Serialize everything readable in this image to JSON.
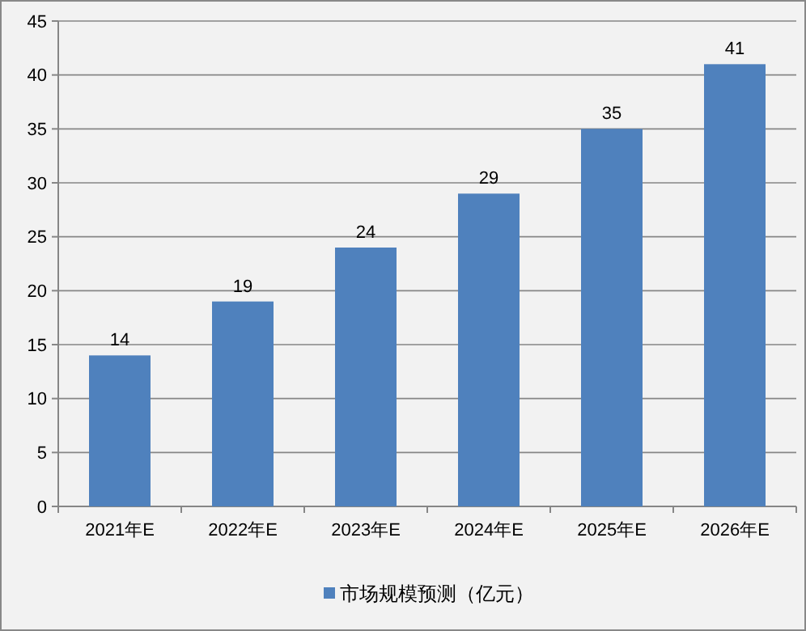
{
  "chart_data": {
    "type": "bar",
    "categories": [
      "2021年E",
      "2022年E",
      "2023年E",
      "2024年E",
      "2025年E",
      "2026年E"
    ],
    "series": [
      {
        "name": "市场规模预测（亿元）",
        "color": "#4f81bd",
        "values": [
          14,
          19,
          24,
          29,
          35,
          41
        ]
      }
    ],
    "ylim": [
      0,
      45
    ],
    "yticks": [
      0,
      5,
      10,
      15,
      20,
      25,
      30,
      35,
      40,
      45
    ],
    "grid": "y",
    "legend": "bottom",
    "data_labels": true
  }
}
